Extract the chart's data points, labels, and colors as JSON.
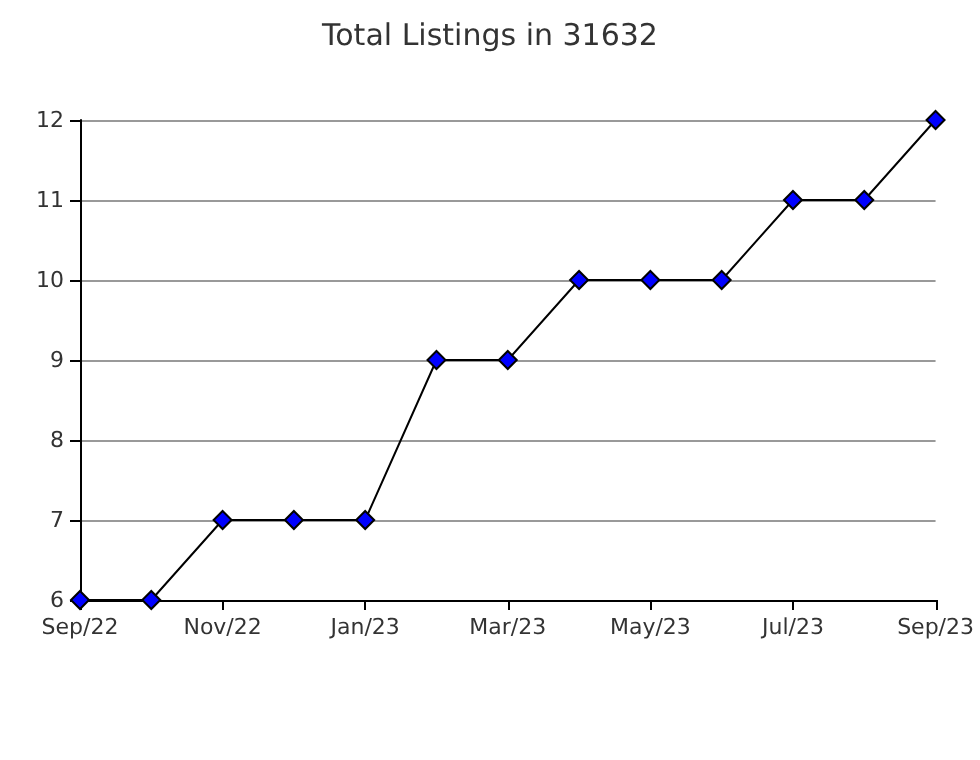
{
  "chart_data": {
    "type": "line",
    "title": "Total Listings in 31632",
    "categories": [
      "Sep/22",
      null,
      "Nov/22",
      null,
      "Jan/23",
      null,
      "Mar/23",
      null,
      "May/23",
      null,
      "Jul/23",
      null,
      "Sep/23"
    ],
    "series": [
      {
        "color": "#0000ff",
        "values": [
          6,
          6,
          7,
          7,
          7,
          9,
          9,
          10,
          10,
          10,
          11,
          11,
          12
        ]
      }
    ],
    "ylim": [
      6,
      12
    ],
    "yticks": [
      6,
      7,
      8,
      9,
      10,
      11,
      12
    ],
    "grid": "y",
    "marker": "diamond",
    "line_style": "solid"
  }
}
